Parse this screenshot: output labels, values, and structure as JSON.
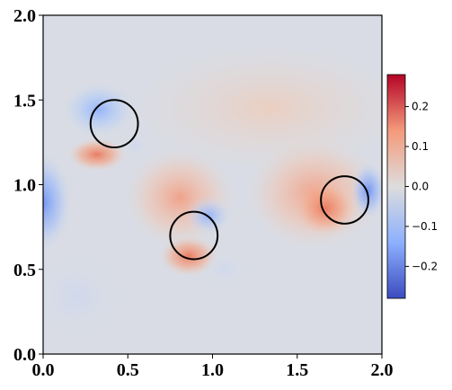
{
  "chart_data": {
    "type": "heatmap",
    "title": "",
    "xlabel": "",
    "ylabel": "",
    "xlim": [
      0.0,
      2.0
    ],
    "ylim": [
      0.0,
      2.0
    ],
    "x_ticks": [
      "0.0",
      "0.5",
      "1.0",
      "1.5",
      "2.0"
    ],
    "y_ticks": [
      "0.0",
      "0.5",
      "1.0",
      "1.5",
      "2.0"
    ],
    "grid": false,
    "colormap": "coolwarm",
    "colorbar": {
      "range": [
        -0.28,
        0.28
      ],
      "ticks": [
        "0.2",
        "0.1",
        "0.0",
        "−0.1",
        "−0.2"
      ],
      "tick_values": [
        0.2,
        0.1,
        0.0,
        -0.1,
        -0.2
      ],
      "placement": "right"
    },
    "circles": [
      {
        "cx": 0.42,
        "cy": 1.36,
        "r": 0.14
      },
      {
        "cx": 0.89,
        "cy": 0.7,
        "r": 0.14
      },
      {
        "cx": 1.78,
        "cy": 0.91,
        "r": 0.14
      }
    ]
  }
}
